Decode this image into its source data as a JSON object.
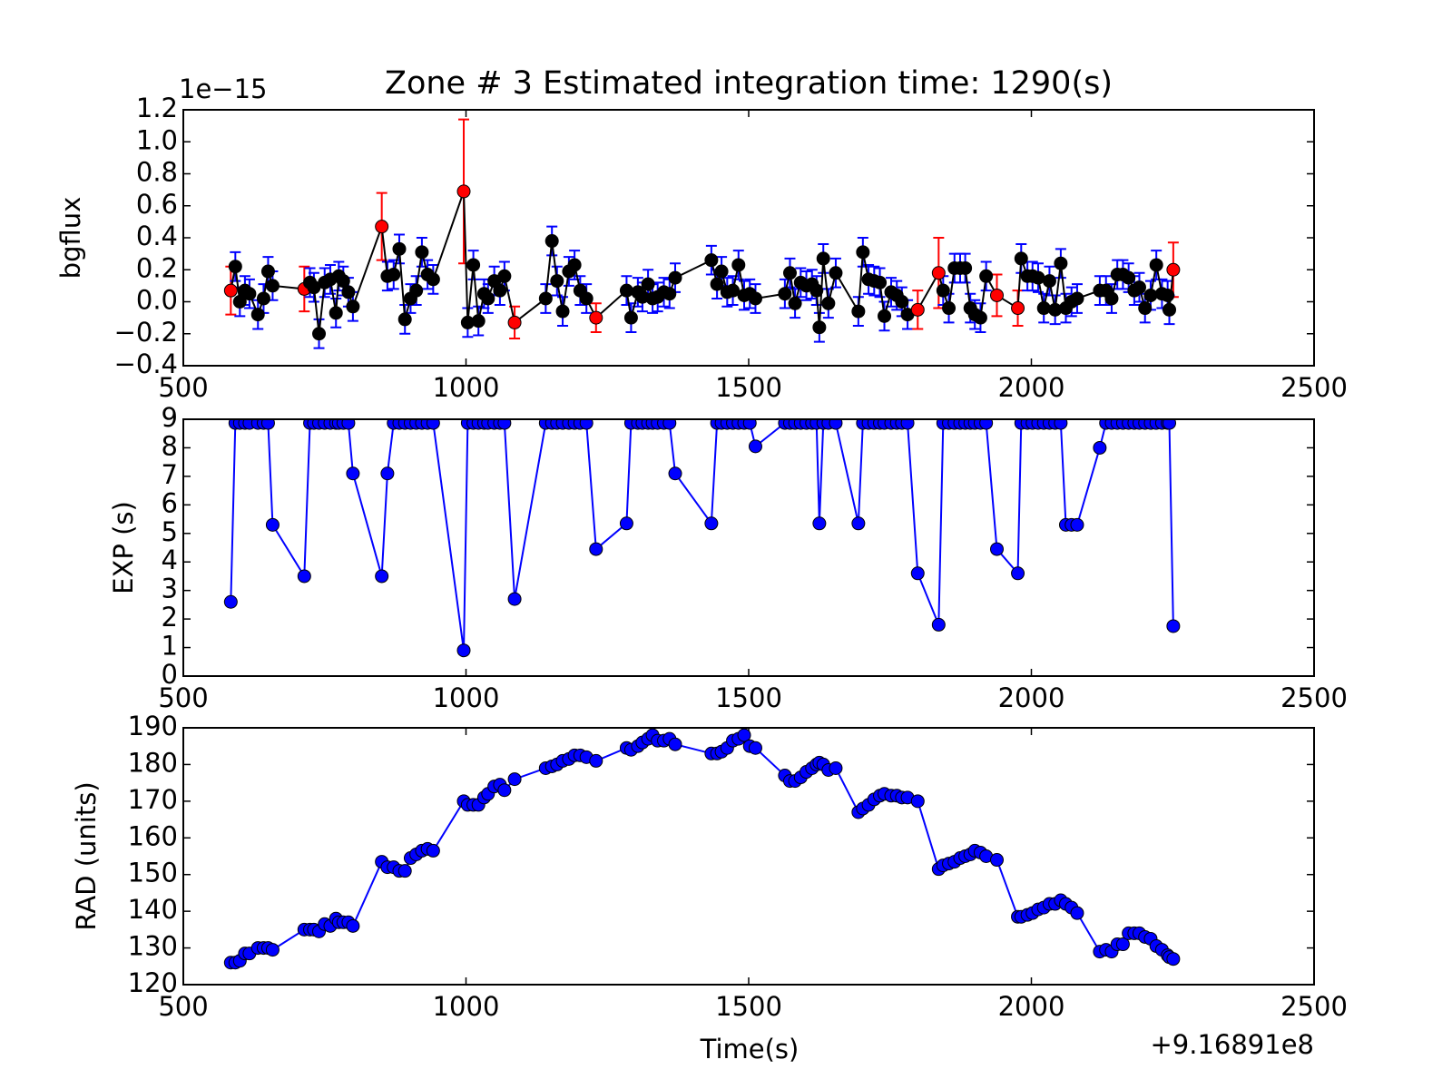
{
  "chart_data": [
    {
      "type": "errorbar",
      "title": "Zone # 3 Estimated integration time: 1290(s)",
      "ylabel": "bgflux",
      "offset_label": "1e−15",
      "x": [
        584,
        592,
        600,
        609,
        617,
        632,
        642,
        650,
        658,
        714,
        724,
        731,
        740,
        750,
        760,
        770,
        775,
        783,
        792,
        800,
        851,
        861,
        872,
        882,
        892,
        902,
        912,
        922,
        932,
        942,
        996,
        1003,
        1013,
        1022,
        1032,
        1039,
        1050,
        1060,
        1068,
        1086,
        1141,
        1152,
        1161,
        1171,
        1182,
        1192,
        1202,
        1213,
        1230,
        1284,
        1292,
        1304,
        1312,
        1322,
        1330,
        1339,
        1350,
        1360,
        1370,
        1434,
        1444,
        1452,
        1462,
        1472,
        1482,
        1492,
        1502,
        1512,
        1564,
        1573,
        1582,
        1592,
        1602,
        1612,
        1620,
        1625,
        1632,
        1641,
        1654,
        1694,
        1702,
        1712,
        1722,
        1732,
        1740,
        1752,
        1762,
        1771,
        1781,
        1799,
        1836,
        1844,
        1854,
        1864,
        1874,
        1883,
        1892,
        1900,
        1910,
        1920,
        1939,
        1976,
        1982,
        1993,
        2002,
        2012,
        2022,
        2032,
        2042,
        2052,
        2061,
        2071,
        2081,
        2121,
        2132,
        2142,
        2152,
        2162,
        2172,
        2182,
        2191,
        2201,
        2211,
        2221,
        2231,
        2241,
        2244,
        2251
      ],
      "values": [
        0.07,
        0.22,
        0.0,
        0.07,
        0.05,
        -0.08,
        0.02,
        0.19,
        0.1,
        0.08,
        0.12,
        0.09,
        -0.2,
        0.12,
        0.14,
        -0.07,
        0.16,
        0.13,
        0.06,
        -0.03,
        0.47,
        0.16,
        0.17,
        0.33,
        -0.11,
        0.02,
        0.07,
        0.31,
        0.17,
        0.14,
        0.69,
        -0.13,
        0.23,
        -0.12,
        0.05,
        0.02,
        0.13,
        0.07,
        0.16,
        -0.13,
        0.02,
        0.38,
        0.13,
        -0.06,
        0.19,
        0.23,
        0.07,
        0.02,
        -0.1,
        0.07,
        -0.1,
        0.06,
        0.03,
        0.11,
        0.02,
        0.03,
        0.06,
        0.05,
        0.15,
        0.26,
        0.11,
        0.19,
        0.06,
        0.07,
        0.23,
        0.04,
        0.05,
        0.02,
        0.05,
        0.18,
        -0.01,
        0.12,
        0.1,
        0.11,
        0.07,
        -0.16,
        0.27,
        -0.01,
        0.18,
        -0.06,
        0.31,
        0.14,
        0.13,
        0.12,
        -0.09,
        0.06,
        0.04,
        0.0,
        -0.08,
        -0.05,
        0.18,
        0.07,
        -0.04,
        0.21,
        0.21,
        0.21,
        -0.04,
        -0.08,
        -0.1,
        0.16,
        0.04,
        -0.04,
        0.27,
        0.16,
        0.16,
        0.15,
        -0.04,
        0.13,
        -0.05,
        0.24,
        -0.04,
        0.0,
        0.02,
        0.07,
        0.07,
        0.02,
        0.17,
        0.17,
        0.15,
        0.07,
        0.09,
        -0.04,
        0.04,
        0.23,
        0.05,
        0.04,
        -0.05,
        0.2
      ],
      "errors": [
        0.15,
        0.09,
        0.09,
        0.09,
        0.09,
        0.09,
        0.09,
        0.09,
        0.09,
        0.14,
        0.09,
        0.09,
        0.09,
        0.09,
        0.09,
        0.09,
        0.09,
        0.09,
        0.09,
        0.09,
        0.21,
        0.09,
        0.09,
        0.09,
        0.09,
        0.09,
        0.09,
        0.09,
        0.09,
        0.09,
        0.45,
        0.09,
        0.09,
        0.09,
        0.09,
        0.09,
        0.09,
        0.09,
        0.09,
        0.1,
        0.09,
        0.09,
        0.09,
        0.09,
        0.09,
        0.09,
        0.09,
        0.09,
        0.09,
        0.09,
        0.09,
        0.09,
        0.09,
        0.09,
        0.09,
        0.09,
        0.09,
        0.09,
        0.09,
        0.09,
        0.09,
        0.09,
        0.09,
        0.09,
        0.09,
        0.09,
        0.09,
        0.09,
        0.09,
        0.09,
        0.09,
        0.09,
        0.09,
        0.09,
        0.09,
        0.09,
        0.09,
        0.09,
        0.09,
        0.09,
        0.09,
        0.09,
        0.09,
        0.09,
        0.09,
        0.09,
        0.09,
        0.09,
        0.09,
        0.12,
        0.22,
        0.09,
        0.09,
        0.09,
        0.09,
        0.09,
        0.09,
        0.09,
        0.09,
        0.09,
        0.13,
        0.11,
        0.09,
        0.09,
        0.09,
        0.09,
        0.09,
        0.09,
        0.09,
        0.09,
        0.09,
        0.09,
        0.09,
        0.09,
        0.09,
        0.09,
        0.09,
        0.09,
        0.09,
        0.09,
        0.09,
        0.09,
        0.09,
        0.09,
        0.09,
        0.09,
        0.09,
        0.17
      ],
      "flagged": [
        0,
        9,
        20,
        30,
        39,
        48,
        89,
        90,
        100,
        101,
        127
      ],
      "color": "#000000",
      "ecolor": "#0000ff",
      "flag_color": "#ff0000",
      "xlim": [
        500,
        2500
      ],
      "xticks": [
        500,
        1000,
        1500,
        2000,
        2500
      ],
      "ylim": [
        -0.4,
        1.2
      ],
      "yticks": [
        {
          "value": -0.4,
          "label": "−0.4"
        },
        {
          "value": -0.2,
          "label": "−0.2"
        },
        {
          "value": 0,
          "label": "0.0"
        },
        0.2,
        0.4,
        0.6,
        0.8,
        {
          "value": 1,
          "label": "1.0"
        },
        1.2
      ]
    },
    {
      "type": "line",
      "ylabel": "EXP (s)",
      "x": [
        584,
        592,
        600,
        609,
        617,
        632,
        642,
        650,
        658,
        714,
        724,
        731,
        740,
        750,
        760,
        770,
        775,
        783,
        792,
        800,
        851,
        861,
        872,
        882,
        892,
        902,
        912,
        922,
        932,
        942,
        996,
        1003,
        1013,
        1022,
        1032,
        1039,
        1050,
        1060,
        1068,
        1086,
        1141,
        1152,
        1161,
        1171,
        1182,
        1192,
        1202,
        1213,
        1230,
        1284,
        1292,
        1304,
        1312,
        1322,
        1330,
        1339,
        1350,
        1360,
        1370,
        1434,
        1444,
        1452,
        1462,
        1472,
        1482,
        1492,
        1502,
        1512,
        1564,
        1573,
        1582,
        1592,
        1602,
        1612,
        1620,
        1625,
        1632,
        1641,
        1654,
        1694,
        1702,
        1712,
        1722,
        1732,
        1740,
        1752,
        1762,
        1771,
        1781,
        1799,
        1836,
        1844,
        1854,
        1864,
        1874,
        1883,
        1892,
        1900,
        1910,
        1920,
        1939,
        1976,
        1982,
        1993,
        2002,
        2012,
        2022,
        2032,
        2042,
        2052,
        2061,
        2071,
        2081,
        2121,
        2132,
        2142,
        2152,
        2162,
        2172,
        2182,
        2191,
        2201,
        2211,
        2221,
        2231,
        2241,
        2244,
        2251
      ],
      "values": [
        2.6,
        8.87,
        8.87,
        8.87,
        8.87,
        8.87,
        8.87,
        8.87,
        5.3,
        3.5,
        8.87,
        8.87,
        8.87,
        8.87,
        8.87,
        8.87,
        8.87,
        8.87,
        8.87,
        7.1,
        3.5,
        7.1,
        8.87,
        8.87,
        8.87,
        8.87,
        8.87,
        8.87,
        8.87,
        8.87,
        0.9,
        8.87,
        8.87,
        8.87,
        8.87,
        8.87,
        8.87,
        8.87,
        8.87,
        2.7,
        8.87,
        8.87,
        8.87,
        8.87,
        8.87,
        8.87,
        8.87,
        8.87,
        4.45,
        5.35,
        8.87,
        8.87,
        8.87,
        8.87,
        8.87,
        8.87,
        8.87,
        8.87,
        7.1,
        5.35,
        8.87,
        8.87,
        8.87,
        8.87,
        8.87,
        8.87,
        8.87,
        8.05,
        8.87,
        8.87,
        8.87,
        8.87,
        8.87,
        8.87,
        8.87,
        5.35,
        8.87,
        8.87,
        8.87,
        5.35,
        8.87,
        8.87,
        8.87,
        8.87,
        8.87,
        8.87,
        8.87,
        8.87,
        8.87,
        3.6,
        1.8,
        8.87,
        8.87,
        8.87,
        8.87,
        8.87,
        8.87,
        8.87,
        8.87,
        8.87,
        4.45,
        3.6,
        8.87,
        8.87,
        8.87,
        8.87,
        8.87,
        8.87,
        8.87,
        8.87,
        5.3,
        5.3,
        5.3,
        8.0,
        8.87,
        8.87,
        8.87,
        8.87,
        8.87,
        8.87,
        8.87,
        8.87,
        8.87,
        8.87,
        8.87,
        8.87,
        8.87,
        1.75
      ],
      "color": "#0000ff",
      "xlim": [
        500,
        2500
      ],
      "xticks": [
        500,
        1000,
        1500,
        2000,
        2500
      ],
      "ylim": [
        0,
        9
      ],
      "yticks": [
        0,
        1,
        2,
        3,
        4,
        5,
        6,
        7,
        8,
        9
      ]
    },
    {
      "type": "line",
      "ylabel": "RAD (units)",
      "xlabel": "Time(s)",
      "offset_label": "+9.16891e8",
      "x": [
        584,
        592,
        600,
        609,
        617,
        632,
        642,
        650,
        658,
        714,
        724,
        731,
        740,
        750,
        760,
        770,
        775,
        783,
        792,
        800,
        851,
        861,
        872,
        882,
        892,
        902,
        912,
        922,
        932,
        942,
        996,
        1003,
        1013,
        1022,
        1032,
        1039,
        1050,
        1060,
        1068,
        1086,
        1141,
        1152,
        1161,
        1171,
        1182,
        1192,
        1202,
        1213,
        1230,
        1284,
        1292,
        1304,
        1312,
        1322,
        1330,
        1339,
        1350,
        1360,
        1370,
        1434,
        1444,
        1452,
        1462,
        1472,
        1482,
        1492,
        1502,
        1512,
        1564,
        1573,
        1582,
        1592,
        1602,
        1612,
        1620,
        1625,
        1632,
        1641,
        1654,
        1694,
        1702,
        1712,
        1722,
        1732,
        1740,
        1752,
        1762,
        1771,
        1781,
        1799,
        1836,
        1844,
        1854,
        1864,
        1874,
        1883,
        1892,
        1900,
        1910,
        1920,
        1939,
        1976,
        1982,
        1993,
        2002,
        2012,
        2022,
        2032,
        2042,
        2052,
        2061,
        2071,
        2081,
        2121,
        2132,
        2142,
        2152,
        2162,
        2172,
        2182,
        2191,
        2201,
        2211,
        2221,
        2231,
        2241,
        2244,
        2251
      ],
      "values": [
        126,
        126,
        126.5,
        128.5,
        128.5,
        130,
        130,
        130,
        129.5,
        135,
        135,
        135,
        134.5,
        136.5,
        136,
        138,
        137,
        137,
        137,
        136,
        153.5,
        152,
        152,
        151,
        151,
        154.5,
        155.5,
        156.5,
        157,
        156.5,
        170,
        169,
        169,
        169,
        171,
        172,
        174,
        174.5,
        173,
        176,
        179,
        179.5,
        180,
        181,
        181.5,
        182.5,
        182.5,
        182,
        181,
        184.5,
        184,
        185,
        186,
        187,
        188,
        186.5,
        186.5,
        187,
        185.5,
        183,
        183,
        183.5,
        184.5,
        186.5,
        187,
        188,
        185,
        184.5,
        177,
        175.5,
        175.5,
        176.5,
        178,
        179,
        180,
        180.5,
        180,
        178.5,
        179,
        167,
        168,
        169,
        170.5,
        171.5,
        172,
        171.5,
        171.5,
        171,
        171,
        170,
        151.5,
        152.5,
        153,
        153.5,
        154.5,
        155,
        155.5,
        156.5,
        156,
        155,
        154,
        138.5,
        138.5,
        139,
        139.5,
        140.5,
        141,
        142,
        142,
        143,
        142,
        141,
        139.5,
        129,
        129.5,
        129,
        131,
        131,
        134,
        134,
        134,
        133,
        132.5,
        130.5,
        129.5,
        128,
        127.5,
        127
      ],
      "color": "#0000ff",
      "xlim": [
        500,
        2500
      ],
      "xticks": [
        500,
        1000,
        1500,
        2000,
        2500
      ],
      "ylim": [
        120,
        190
      ],
      "yticks": [
        120,
        130,
        140,
        150,
        160,
        170,
        180,
        190
      ]
    }
  ]
}
